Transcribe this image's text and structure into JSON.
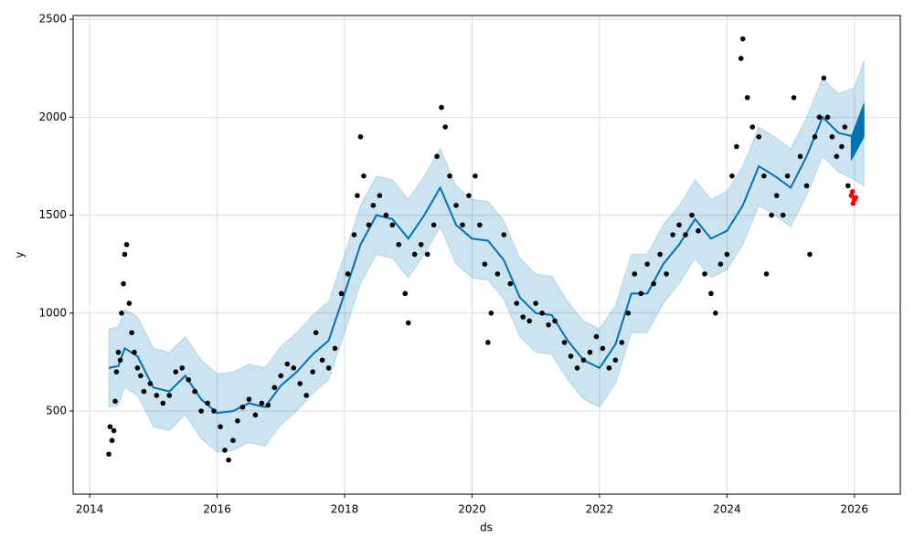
{
  "chart_data": {
    "type": "forecast",
    "xlabel": "ds",
    "ylabel": "y",
    "xlim": [
      2013.74,
      2026.72
    ],
    "xticks": [
      2014,
      2016,
      2018,
      2020,
      2022,
      2024,
      2026
    ],
    "ylim": [
      76,
      2519
    ],
    "yticks": [
      500,
      1000,
      1500,
      2000,
      2500
    ],
    "grid": true,
    "series": [
      {
        "type": "line",
        "color": "#0072B2",
        "x": [
          2014.3,
          2014.45,
          2014.55,
          2014.75,
          2015.0,
          2015.25,
          2015.5,
          2015.75,
          2016.0,
          2016.25,
          2016.5,
          2016.75,
          2017.0,
          2017.25,
          2017.5,
          2017.75,
          2018.0,
          2018.25,
          2018.5,
          2018.75,
          2019.0,
          2019.25,
          2019.5,
          2019.75,
          2020.0,
          2020.25,
          2020.5,
          2020.75,
          2021.0,
          2021.25,
          2021.5,
          2021.75,
          2022.0,
          2022.25,
          2022.5,
          2022.75,
          2023.0,
          2023.25,
          2023.5,
          2023.75,
          2024.0,
          2024.25,
          2024.5,
          2024.75,
          2025.0,
          2025.25,
          2025.5,
          2025.75,
          2026.0,
          2026.15
        ],
        "values": [
          720,
          730,
          820,
          780,
          620,
          600,
          680,
          560,
          490,
          500,
          540,
          520,
          630,
          700,
          790,
          860,
          1100,
          1350,
          1500,
          1480,
          1380,
          1500,
          1640,
          1450,
          1380,
          1370,
          1270,
          1080,
          1000,
          990,
          860,
          760,
          720,
          840,
          1100,
          1100,
          1250,
          1350,
          1480,
          1380,
          1420,
          1550,
          1750,
          1700,
          1640,
          1800,
          2000,
          1920,
          1900,
          1950
        ],
        "lower": [
          520,
          530,
          620,
          580,
          420,
          400,
          480,
          360,
          290,
          300,
          340,
          320,
          430,
          500,
          590,
          660,
          900,
          1150,
          1300,
          1280,
          1180,
          1300,
          1440,
          1250,
          1180,
          1170,
          1070,
          880,
          800,
          790,
          660,
          560,
          520,
          640,
          900,
          900,
          1050,
          1150,
          1280,
          1180,
          1220,
          1350,
          1550,
          1500,
          1440,
          1600,
          1800,
          1720,
          1680,
          1650
        ],
        "upper": [
          920,
          930,
          1020,
          980,
          820,
          800,
          880,
          760,
          690,
          700,
          740,
          720,
          830,
          900,
          990,
          1060,
          1300,
          1550,
          1700,
          1680,
          1580,
          1700,
          1840,
          1650,
          1580,
          1570,
          1470,
          1280,
          1200,
          1190,
          1060,
          960,
          920,
          1040,
          1300,
          1300,
          1450,
          1550,
          1680,
          1580,
          1620,
          1750,
          1950,
          1900,
          1840,
          2000,
          2200,
          2120,
          2150,
          2290
        ]
      },
      {
        "type": "area",
        "color": "#0072B2",
        "x": [
          2025.95,
          2026.15
        ],
        "lower": [
          1780,
          1900
        ],
        "upper": [
          1900,
          2070
        ]
      },
      {
        "type": "scatter",
        "color": "#000000",
        "x": [
          2014.3,
          2014.32,
          2014.35,
          2014.38,
          2014.4,
          2014.42,
          2014.45,
          2014.48,
          2014.5,
          2014.53,
          2014.55,
          2014.58,
          2014.62,
          2014.66,
          2014.7,
          2014.75,
          2014.8,
          2014.85,
          2014.95,
          2015.05,
          2015.15,
          2015.25,
          2015.35,
          2015.45,
          2015.55,
          2015.65,
          2015.75,
          2015.85,
          2015.95,
          2016.05,
          2016.12,
          2016.18,
          2016.25,
          2016.32,
          2016.4,
          2016.5,
          2016.6,
          2016.7,
          2016.8,
          2016.9,
          2017.0,
          2017.1,
          2017.2,
          2017.3,
          2017.4,
          2017.5,
          2017.55,
          2017.65,
          2017.75,
          2017.85,
          2017.95,
          2018.05,
          2018.15,
          2018.2,
          2018.25,
          2018.3,
          2018.38,
          2018.45,
          2018.55,
          2018.65,
          2018.75,
          2018.85,
          2018.95,
          2019.0,
          2019.1,
          2019.2,
          2019.3,
          2019.4,
          2019.45,
          2019.52,
          2019.58,
          2019.65,
          2019.75,
          2019.85,
          2019.95,
          2020.05,
          2020.12,
          2020.2,
          2020.25,
          2020.3,
          2020.4,
          2020.5,
          2020.6,
          2020.7,
          2020.8,
          2020.9,
          2021.0,
          2021.1,
          2021.2,
          2021.3,
          2021.45,
          2021.55,
          2021.65,
          2021.75,
          2021.85,
          2021.95,
          2022.05,
          2022.15,
          2022.25,
          2022.35,
          2022.45,
          2022.55,
          2022.65,
          2022.75,
          2022.85,
          2022.95,
          2023.05,
          2023.15,
          2023.25,
          2023.35,
          2023.45,
          2023.55,
          2023.65,
          2023.75,
          2023.82,
          2023.9,
          2024.0,
          2024.08,
          2024.15,
          2024.22,
          2024.25,
          2024.32,
          2024.4,
          2024.5,
          2024.58,
          2024.62,
          2024.7,
          2024.78,
          2024.88,
          2024.95,
          2025.05,
          2025.15,
          2025.25,
          2025.3,
          2025.38,
          2025.45,
          2025.52,
          2025.58,
          2025.65,
          2025.72,
          2025.8,
          2025.85,
          2025.9
        ],
        "values": [
          280,
          420,
          350,
          400,
          550,
          700,
          800,
          760,
          1000,
          1150,
          1300,
          1350,
          1050,
          900,
          800,
          720,
          680,
          600,
          640,
          580,
          540,
          580,
          700,
          720,
          660,
          600,
          500,
          540,
          500,
          420,
          300,
          250,
          350,
          450,
          520,
          560,
          480,
          540,
          530,
          620,
          680,
          740,
          720,
          640,
          580,
          700,
          900,
          760,
          720,
          820,
          1100,
          1200,
          1400,
          1600,
          1900,
          1700,
          1450,
          1550,
          1600,
          1500,
          1450,
          1350,
          1100,
          950,
          1300,
          1350,
          1300,
          1450,
          1800,
          2050,
          1950,
          1700,
          1550,
          1450,
          1600,
          1700,
          1450,
          1250,
          850,
          1000,
          1200,
          1400,
          1150,
          1050,
          980,
          960,
          1050,
          1000,
          940,
          960,
          850,
          780,
          720,
          760,
          800,
          880,
          820,
          720,
          760,
          850,
          1000,
          1200,
          1100,
          1250,
          1150,
          1300,
          1200,
          1400,
          1450,
          1400,
          1500,
          1420,
          1200,
          1100,
          1000,
          1250,
          1300,
          1700,
          1850,
          2300,
          2400,
          2100,
          1950,
          1900,
          1700,
          1200,
          1500,
          1600,
          1500,
          1700,
          2100,
          1800,
          1650,
          1300,
          1900,
          2000,
          2200,
          2000,
          1900,
          1800,
          1850,
          1950,
          1650
        ]
      },
      {
        "type": "scatter",
        "color": "#ff0000",
        "x": [
          2025.95,
          2025.97,
          2025.98,
          2026.0,
          2026.02
        ],
        "values": [
          1600,
          1620,
          1560,
          1580,
          1590
        ]
      }
    ]
  }
}
